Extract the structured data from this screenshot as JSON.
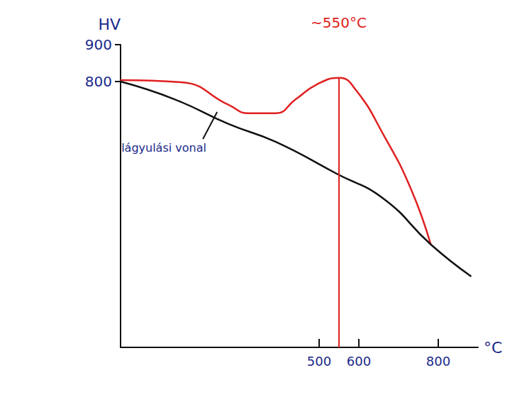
{
  "chart_data": {
    "type": "line",
    "x_label": "°C",
    "y_label": "HV",
    "xlim": [
      0,
      900
    ],
    "ylim": [
      80,
      900
    ],
    "xticks": [
      500,
      600,
      800
    ],
    "yticks": [
      800,
      900
    ],
    "grid": false,
    "annotation": "~550°C",
    "peak": {
      "x": 550,
      "y": 810
    },
    "series": [
      {
        "name": "lágyulási vonal",
        "color": "#111111",
        "line_style": "solid",
        "x": [
          0,
          136,
          272,
          390,
          543,
          662,
          781,
          883
        ],
        "values": [
          800,
          752,
          685,
          637,
          551,
          483,
          359,
          272
        ]
      },
      {
        "color": "#e02020",
        "line_style": "solid",
        "x": [
          0,
          153,
          272,
          323,
          390,
          441,
          492,
          550,
          594,
          662,
          730,
          781
        ],
        "values": [
          804,
          798,
          737,
          714,
          714,
          752,
          791,
          810,
          775,
          656,
          512,
          359
        ]
      }
    ]
  }
}
